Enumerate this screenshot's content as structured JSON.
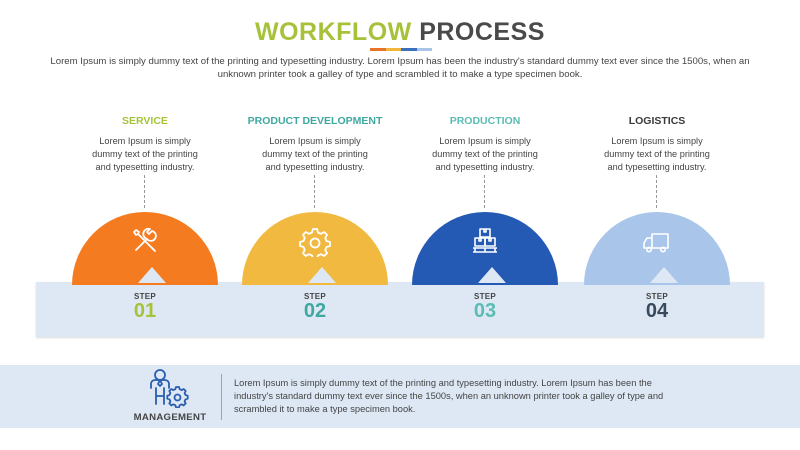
{
  "header": {
    "title_part1": "WORKFLOW",
    "title_part2": "PROCESS",
    "title_color_1": "#a6c23a",
    "title_color_2": "#4a4a4a",
    "underline_colors": [
      "#e8742a",
      "#f1b73d",
      "#3d6fbf",
      "#a9c4e6"
    ],
    "intro": "Lorem Ipsum is simply dummy text of the printing and typesetting industry. Lorem Ipsum has been the industry's standard dummy text ever since the 1500s, when an unknown printer took a galley of type and scrambled it to make a type specimen book."
  },
  "steps": [
    {
      "title": "SERVICE",
      "description": "Lorem Ipsum is simply dummy text of the printing and typesetting industry.",
      "step_label": "STEP",
      "number": "01",
      "icon": "tools-icon",
      "dome_color": "#f47b20",
      "title_color": "#a6c23a",
      "number_color": "#a6c23a"
    },
    {
      "title": "PRODUCT DEVELOPMENT",
      "description": "Lorem Ipsum is simply dummy text of the printing and typesetting industry.",
      "step_label": "STEP",
      "number": "02",
      "icon": "gear-icon",
      "dome_color": "#f2b941",
      "title_color": "#3fa8a0",
      "number_color": "#3fa8a0"
    },
    {
      "title": "PRODUCTION",
      "description": "Lorem Ipsum is simply dummy text of the printing and typesetting industry.",
      "step_label": "STEP",
      "number": "03",
      "icon": "boxes-icon",
      "dome_color": "#2459b4",
      "title_color": "#5bbcb4",
      "number_color": "#5bbcb4"
    },
    {
      "title": "LOGISTICS",
      "description": "Lorem Ipsum is simply dummy text of the printing and typesetting industry.",
      "step_label": "STEP",
      "number": "04",
      "icon": "truck-icon",
      "dome_color": "#a9c6ea",
      "title_color": "#3a3a3a",
      "number_color": "#3a4a5e"
    }
  ],
  "footer": {
    "label": "MANAGEMENT",
    "icon": "manager-gear-icon",
    "text": "Lorem Ipsum is simply dummy text of the printing and typesetting industry. Lorem Ipsum has been the industry's standard dummy text ever since the 1500s, when an unknown printer took a galley of type and scrambled it to make a type specimen book."
  }
}
